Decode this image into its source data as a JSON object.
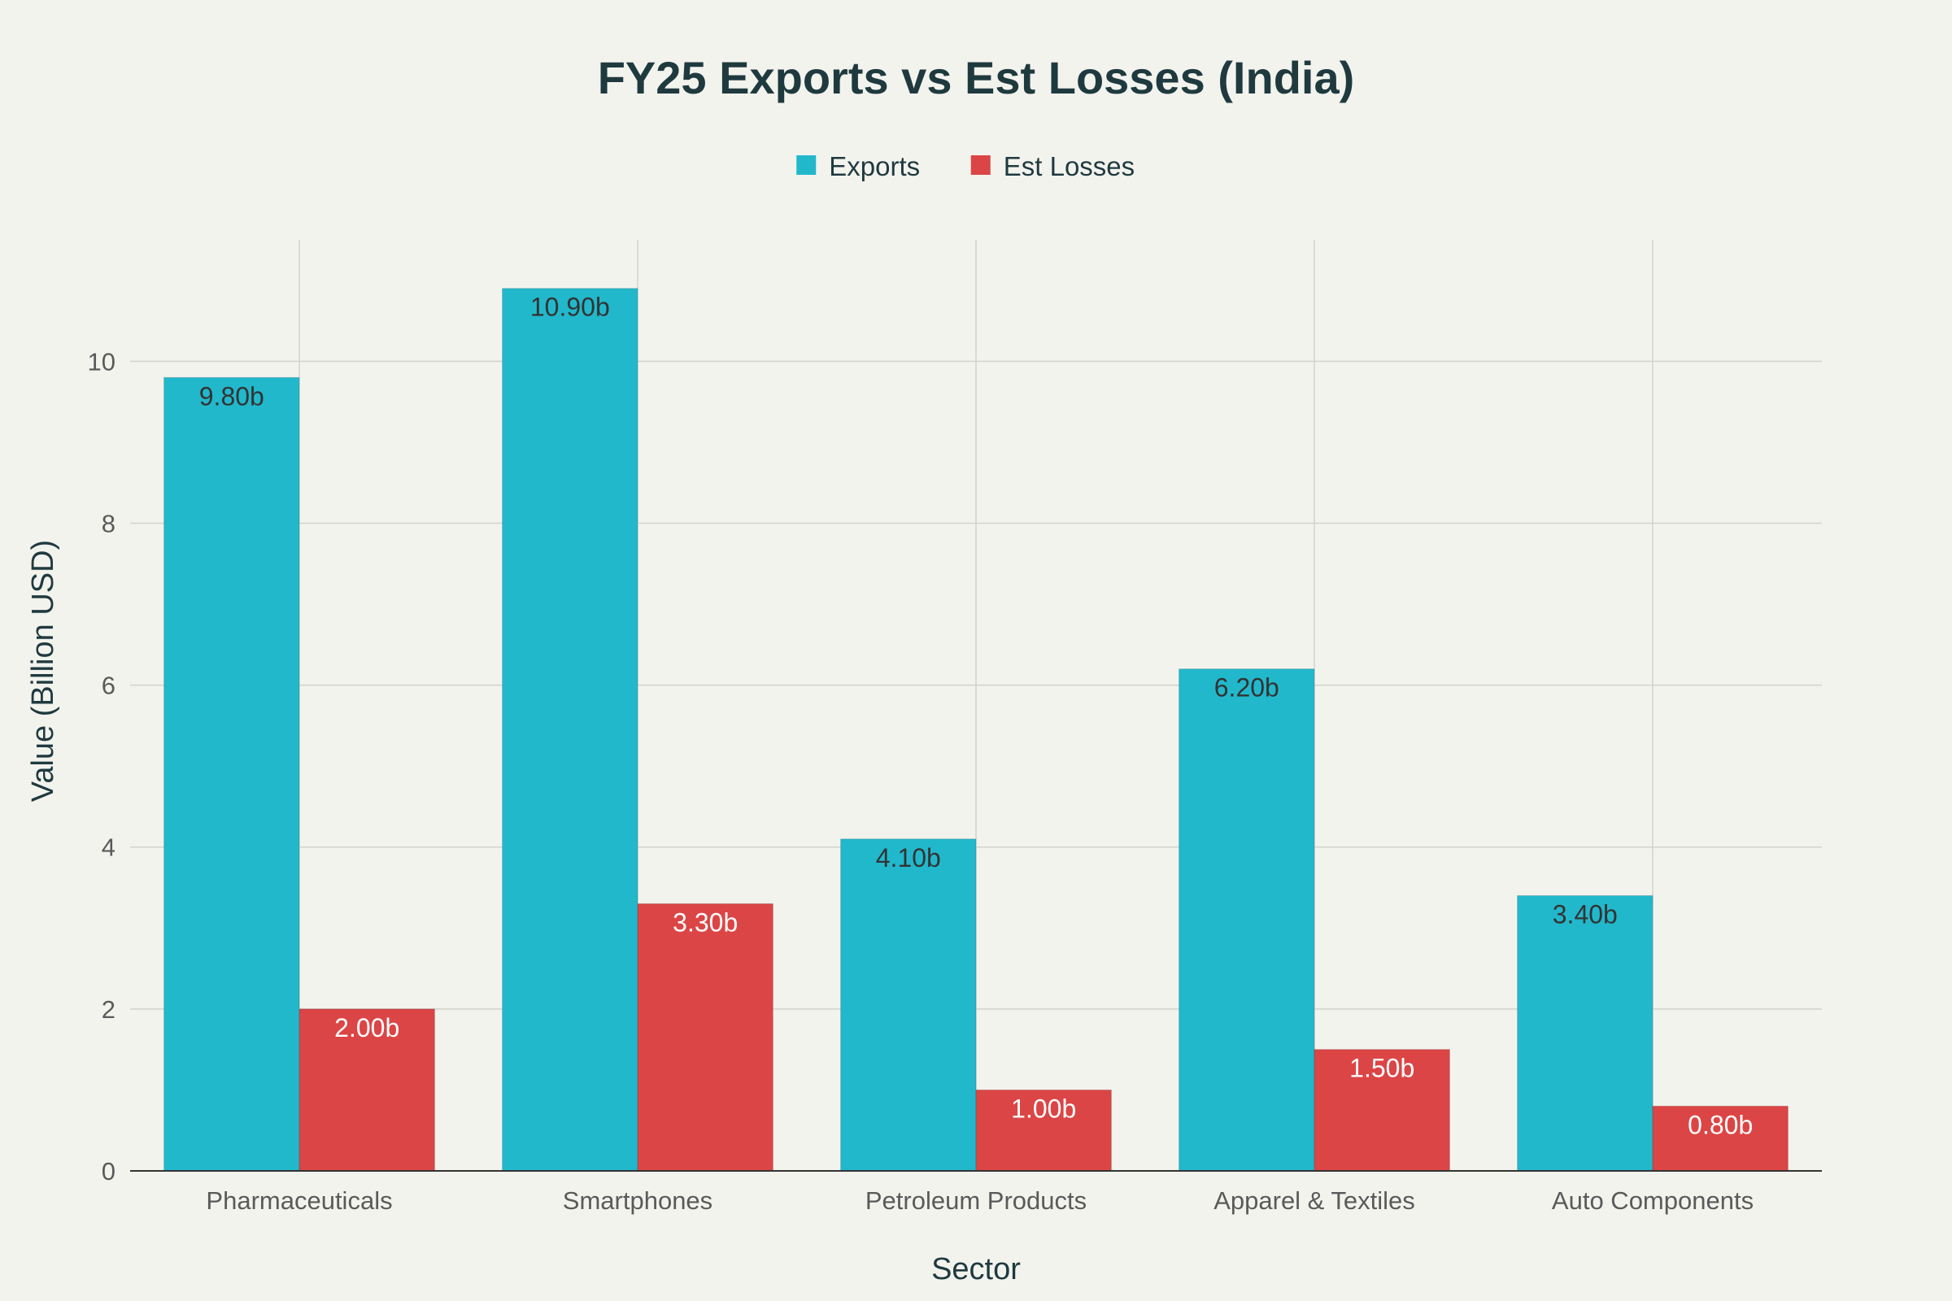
{
  "chart_data": {
    "type": "bar",
    "title": "FY25 Exports vs Est Losses (India)",
    "xlabel": "Sector",
    "ylabel": "Value (Billion USD)",
    "categories": [
      "Pharmaceuticals",
      "Smartphones",
      "Petroleum Products",
      "Apparel & Textiles",
      "Auto Components"
    ],
    "series": [
      {
        "name": "Exports",
        "color": "#21B8CC",
        "label_color": "#333333",
        "values": [
          9.8,
          10.9,
          4.1,
          6.2,
          3.4
        ],
        "labels": [
          "9.80b",
          "10.90b",
          "4.10b",
          "6.20b",
          "3.40b"
        ]
      },
      {
        "name": "Est Losses",
        "color": "#DC4545",
        "label_color": "#FFFFFF",
        "values": [
          2.0,
          3.3,
          1.0,
          1.5,
          0.8
        ],
        "labels": [
          "2.00b",
          "3.30b",
          "1.00b",
          "1.50b",
          "0.80b"
        ]
      }
    ],
    "ylim": [
      0,
      11.5
    ],
    "yticks": [
      0,
      2,
      4,
      6,
      8,
      10
    ],
    "grid": true,
    "legend_position": "top-center",
    "background": "#F3F3EE"
  }
}
